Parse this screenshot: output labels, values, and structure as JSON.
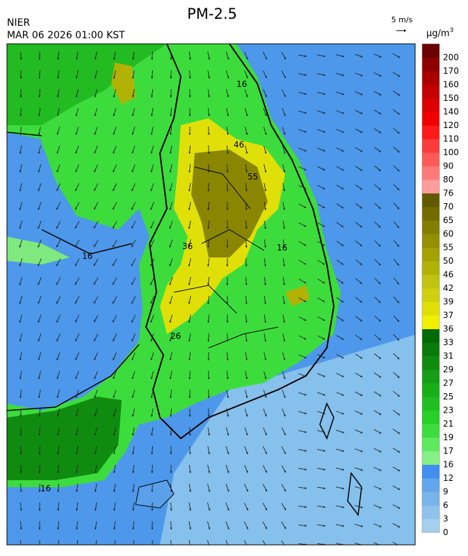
{
  "header": {
    "title": "PM-2.5",
    "agency": "NIER",
    "timestamp": "MAR 06 2026 01:00 KST"
  },
  "wind_scale": {
    "label": "5 m/s"
  },
  "colorbar": {
    "unit": "μg/m",
    "unit_exponent": "3",
    "levels": [
      {
        "label": "0",
        "color": "#a4d0ee"
      },
      {
        "label": "3",
        "color": "#8fc3ec"
      },
      {
        "label": "6",
        "color": "#78b3ea"
      },
      {
        "label": "9",
        "color": "#62a5ec"
      },
      {
        "label": "12",
        "color": "#3f8ef0"
      },
      {
        "label": "16",
        "color": "#86f086"
      },
      {
        "label": "17",
        "color": "#5eea5e"
      },
      {
        "label": "19",
        "color": "#3ddc3d"
      },
      {
        "label": "21",
        "color": "#27cf27"
      },
      {
        "label": "23",
        "color": "#20bf20"
      },
      {
        "label": "25",
        "color": "#18ae18"
      },
      {
        "label": "27",
        "color": "#169e16"
      },
      {
        "label": "29",
        "color": "#0f8c0f"
      },
      {
        "label": "31",
        "color": "#0a7a0a"
      },
      {
        "label": "33",
        "color": "#006a00"
      },
      {
        "label": "36",
        "color": "#f0f000"
      },
      {
        "label": "37",
        "color": "#e0e008"
      },
      {
        "label": "39",
        "color": "#d0d010"
      },
      {
        "label": "42",
        "color": "#c2c210"
      },
      {
        "label": "46",
        "color": "#b2b206"
      },
      {
        "label": "50",
        "color": "#a2a200"
      },
      {
        "label": "55",
        "color": "#929000"
      },
      {
        "label": "60",
        "color": "#827e00"
      },
      {
        "label": "65",
        "color": "#726c00"
      },
      {
        "label": "70",
        "color": "#625a00"
      },
      {
        "label": "76",
        "color": "#ff9c9c"
      },
      {
        "label": "80",
        "color": "#ff7a7a"
      },
      {
        "label": "90",
        "color": "#ff5a5a"
      },
      {
        "label": "100",
        "color": "#ff3a3a"
      },
      {
        "label": "110",
        "color": "#ff1a1a"
      },
      {
        "label": "120",
        "color": "#f00000"
      },
      {
        "label": "140",
        "color": "#dc0000"
      },
      {
        "label": "150",
        "color": "#c40000"
      },
      {
        "label": "160",
        "color": "#aa0000"
      },
      {
        "label": "170",
        "color": "#8c0000"
      },
      {
        "label": "200",
        "color": "#6a0000"
      }
    ]
  },
  "contour_labels": [
    "16",
    "16",
    "16",
    "26",
    "36",
    "46",
    "55",
    "16"
  ]
}
